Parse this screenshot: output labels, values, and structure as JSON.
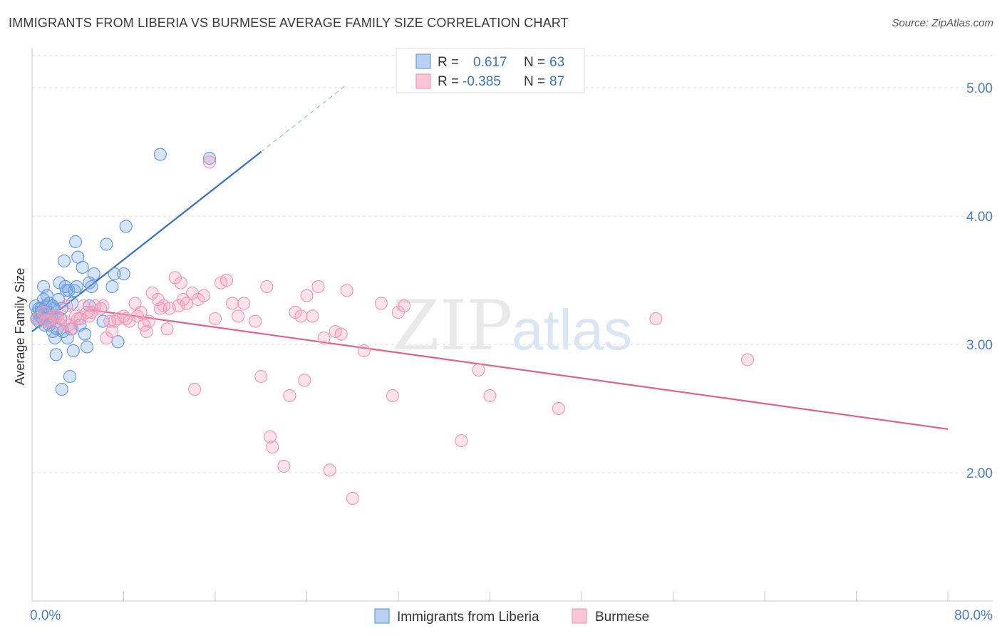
{
  "header": {
    "title": "IMMIGRANTS FROM LIBERIA VS BURMESE AVERAGE FAMILY SIZE CORRELATION CHART",
    "source": "Source: ZipAtlas.com"
  },
  "watermark": {
    "zip": "ZIP",
    "atlas": "atlas"
  },
  "legend_top": {
    "rows": [
      {
        "r_label": "R =",
        "r_value": "0.617",
        "n_label": "N =",
        "n_value": "63"
      },
      {
        "r_label": "R =",
        "r_value": "-0.385",
        "n_label": "N =",
        "n_value": "87"
      }
    ]
  },
  "chart_data": {
    "type": "scatter",
    "xlabel": "",
    "ylabel": "Average Family Size",
    "xlim": [
      0,
      80
    ],
    "ylim": [
      1.0,
      5.25
    ],
    "x_tick_labels": [
      "0.0%",
      "80.0%"
    ],
    "y_ticks": [
      2.0,
      3.0,
      4.0,
      5.0
    ],
    "y_tick_labels": [
      "2.00",
      "3.00",
      "4.00",
      "5.00"
    ],
    "grid": "horizontal dashed",
    "legend_placement": "bottom-center",
    "colors": {
      "liberia": "#6a9be0",
      "burmese": "#f09ab8",
      "liberia_line": "#2f6fd0",
      "burmese_line": "#e0608e",
      "tick_text": "#4a7cc9"
    },
    "series": [
      {
        "name": "Immigrants from Liberia",
        "r": 0.617,
        "n": 63,
        "trend": {
          "x0": 0.0,
          "y0": 3.1,
          "x1": 20.0,
          "y1": 4.5,
          "dashed_to_x": 27.5
        },
        "points": [
          [
            0.3,
            3.3
          ],
          [
            0.4,
            3.2
          ],
          [
            0.5,
            3.25
          ],
          [
            0.6,
            3.18
          ],
          [
            0.7,
            3.22
          ],
          [
            0.8,
            3.28
          ],
          [
            0.9,
            3.2
          ],
          [
            1.0,
            3.35
          ],
          [
            1.0,
            3.45
          ],
          [
            1.1,
            3.15
          ],
          [
            1.2,
            3.3
          ],
          [
            1.3,
            3.38
          ],
          [
            1.4,
            3.25
          ],
          [
            1.5,
            3.32
          ],
          [
            1.6,
            3.18
          ],
          [
            1.7,
            3.22
          ],
          [
            1.8,
            3.1
          ],
          [
            1.9,
            3.28
          ],
          [
            2.0,
            3.05
          ],
          [
            2.1,
            2.92
          ],
          [
            2.2,
            3.12
          ],
          [
            2.3,
            3.35
          ],
          [
            2.4,
            3.48
          ],
          [
            2.5,
            3.2
          ],
          [
            2.6,
            3.28
          ],
          [
            2.7,
            3.1
          ],
          [
            2.8,
            3.65
          ],
          [
            2.9,
            3.45
          ],
          [
            3.0,
            3.42
          ],
          [
            3.1,
            3.05
          ],
          [
            3.2,
            3.42
          ],
          [
            3.3,
            2.75
          ],
          [
            3.4,
            3.12
          ],
          [
            3.5,
            3.32
          ],
          [
            3.6,
            2.95
          ],
          [
            3.7,
            3.42
          ],
          [
            3.8,
            3.8
          ],
          [
            3.9,
            3.45
          ],
          [
            4.0,
            3.68
          ],
          [
            4.2,
            3.15
          ],
          [
            4.4,
            3.6
          ],
          [
            4.6,
            3.08
          ],
          [
            4.8,
            2.98
          ],
          [
            5.0,
            3.48
          ],
          [
            5.2,
            3.45
          ],
          [
            5.4,
            3.55
          ],
          [
            5.0,
            3.3
          ],
          [
            6.2,
            3.18
          ],
          [
            6.5,
            3.78
          ],
          [
            7.0,
            3.45
          ],
          [
            7.2,
            3.55
          ],
          [
            7.5,
            3.02
          ],
          [
            8.0,
            3.55
          ],
          [
            8.2,
            3.92
          ],
          [
            11.2,
            4.48
          ],
          [
            15.5,
            4.45
          ],
          [
            1.5,
            3.15
          ],
          [
            2.0,
            3.22
          ],
          [
            1.8,
            3.3
          ],
          [
            2.6,
            2.65
          ],
          [
            0.8,
            3.25
          ],
          [
            1.2,
            3.2
          ],
          [
            0.6,
            3.28
          ]
        ]
      },
      {
        "name": "Burmese",
        "r": -0.385,
        "n": 87,
        "trend": {
          "x0": 5.0,
          "y0": 3.27,
          "x1": 80.0,
          "y1": 2.34
        },
        "points": [
          [
            0.5,
            3.2
          ],
          [
            1.0,
            3.25
          ],
          [
            1.5,
            3.18
          ],
          [
            2.0,
            3.22
          ],
          [
            2.5,
            3.15
          ],
          [
            3.0,
            3.3
          ],
          [
            3.5,
            3.12
          ],
          [
            4.0,
            3.2
          ],
          [
            4.5,
            3.3
          ],
          [
            5.0,
            3.22
          ],
          [
            5.5,
            3.3
          ],
          [
            6.0,
            3.28
          ],
          [
            6.5,
            3.05
          ],
          [
            7.0,
            3.1
          ],
          [
            7.5,
            3.2
          ],
          [
            8.0,
            3.22
          ],
          [
            8.5,
            3.18
          ],
          [
            9.0,
            3.32
          ],
          [
            9.5,
            3.25
          ],
          [
            10.0,
            3.1
          ],
          [
            10.5,
            3.4
          ],
          [
            11.0,
            3.35
          ],
          [
            11.5,
            3.3
          ],
          [
            12.0,
            3.28
          ],
          [
            12.5,
            3.52
          ],
          [
            13.0,
            3.48
          ],
          [
            13.5,
            3.32
          ],
          [
            14.0,
            3.4
          ],
          [
            14.5,
            3.35
          ],
          [
            15.0,
            3.38
          ],
          [
            15.5,
            4.42
          ],
          [
            16.0,
            3.2
          ],
          [
            16.5,
            3.48
          ],
          [
            17.0,
            3.5
          ],
          [
            17.5,
            3.32
          ],
          [
            18.0,
            3.22
          ],
          [
            19.5,
            3.18
          ],
          [
            20.0,
            2.75
          ],
          [
            20.5,
            3.45
          ],
          [
            21.0,
            2.2
          ],
          [
            22.0,
            2.05
          ],
          [
            22.5,
            2.6
          ],
          [
            23.0,
            3.25
          ],
          [
            23.5,
            3.22
          ],
          [
            24.0,
            3.38
          ],
          [
            24.5,
            3.22
          ],
          [
            25.0,
            3.45
          ],
          [
            25.5,
            3.05
          ],
          [
            26.0,
            2.02
          ],
          [
            27.0,
            3.08
          ],
          [
            27.5,
            3.42
          ],
          [
            28.0,
            1.8
          ],
          [
            29.0,
            2.95
          ],
          [
            31.5,
            2.6
          ],
          [
            32.0,
            3.25
          ],
          [
            32.5,
            3.3
          ],
          [
            37.5,
            2.25
          ],
          [
            39.0,
            2.8
          ],
          [
            40.0,
            2.6
          ],
          [
            46.0,
            2.5
          ],
          [
            54.5,
            3.2
          ],
          [
            62.5,
            2.88
          ],
          [
            1.2,
            3.18
          ],
          [
            2.2,
            3.22
          ],
          [
            3.2,
            3.15
          ],
          [
            4.2,
            3.2
          ],
          [
            5.2,
            3.25
          ],
          [
            6.2,
            3.3
          ],
          [
            7.2,
            3.18
          ],
          [
            8.2,
            3.2
          ],
          [
            9.2,
            3.22
          ],
          [
            10.2,
            3.18
          ],
          [
            11.2,
            3.28
          ],
          [
            13.2,
            3.35
          ],
          [
            14.2,
            2.65
          ],
          [
            18.5,
            3.32
          ],
          [
            20.8,
            2.28
          ],
          [
            23.8,
            2.72
          ],
          [
            26.5,
            3.1
          ],
          [
            30.5,
            3.32
          ],
          [
            11.8,
            3.12
          ],
          [
            6.8,
            3.18
          ],
          [
            4.8,
            3.25
          ],
          [
            3.8,
            3.22
          ],
          [
            2.8,
            3.18
          ],
          [
            9.8,
            3.15
          ],
          [
            12.8,
            3.3
          ]
        ]
      }
    ]
  },
  "legend_bottom": {
    "items": [
      {
        "label": "Immigrants from Liberia"
      },
      {
        "label": "Burmese"
      }
    ]
  }
}
